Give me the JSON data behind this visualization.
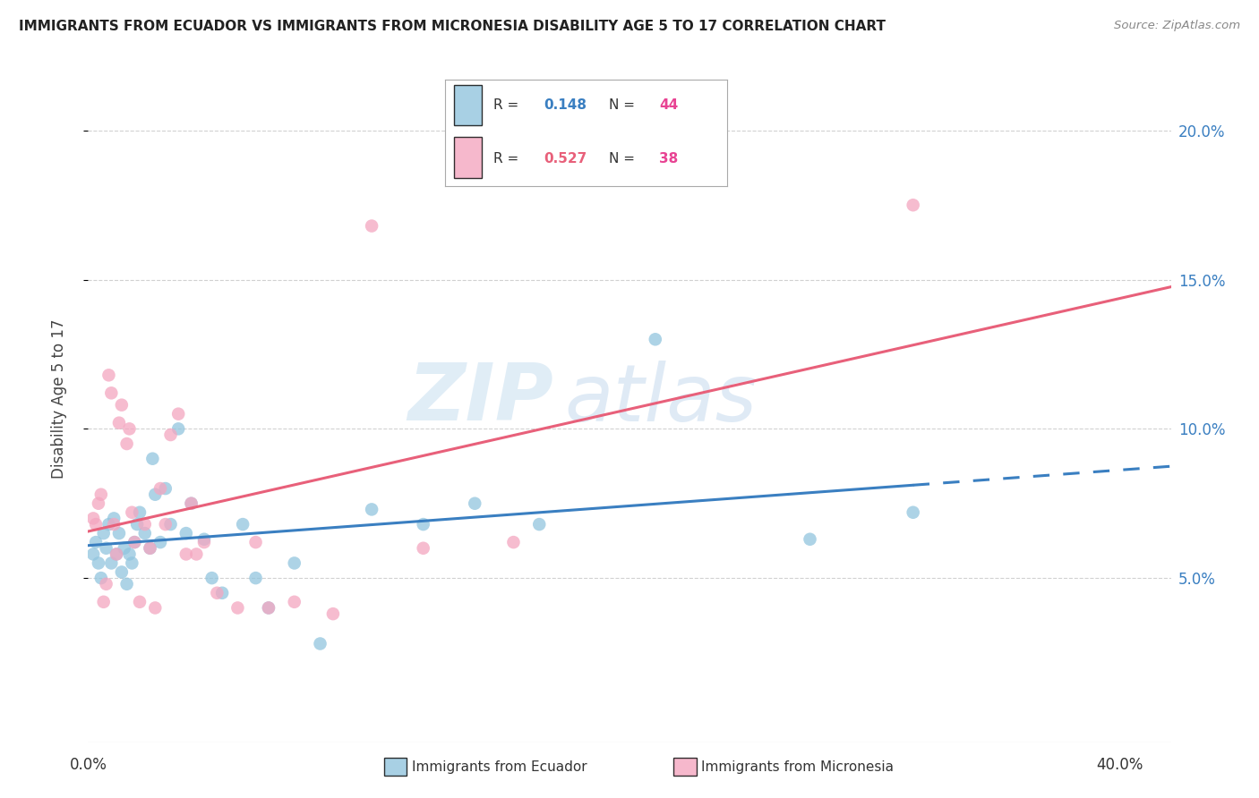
{
  "title": "IMMIGRANTS FROM ECUADOR VS IMMIGRANTS FROM MICRONESIA DISABILITY AGE 5 TO 17 CORRELATION CHART",
  "source": "Source: ZipAtlas.com",
  "ylabel": "Disability Age 5 to 17",
  "xlim": [
    0.0,
    0.42
  ],
  "ylim": [
    -0.005,
    0.225
  ],
  "yticks": [
    0.05,
    0.1,
    0.15,
    0.2
  ],
  "ytick_labels": [
    "5.0%",
    "10.0%",
    "15.0%",
    "20.0%"
  ],
  "ecuador_color": "#92c5de",
  "micronesia_color": "#f4a6c0",
  "ecuador_line_color": "#3a7fc1",
  "micronesia_line_color": "#e8607a",
  "ecuador_R": "0.148",
  "ecuador_N": "44",
  "micronesia_R": "0.527",
  "micronesia_N": "38",
  "watermark_zip": "ZIP",
  "watermark_atlas": "atlas",
  "ecuador_points_x": [
    0.002,
    0.003,
    0.004,
    0.005,
    0.006,
    0.007,
    0.008,
    0.009,
    0.01,
    0.011,
    0.012,
    0.013,
    0.014,
    0.015,
    0.016,
    0.017,
    0.018,
    0.019,
    0.02,
    0.022,
    0.024,
    0.025,
    0.026,
    0.028,
    0.03,
    0.032,
    0.035,
    0.038,
    0.04,
    0.045,
    0.048,
    0.052,
    0.06,
    0.065,
    0.07,
    0.08,
    0.09,
    0.11,
    0.13,
    0.15,
    0.175,
    0.22,
    0.28,
    0.32
  ],
  "ecuador_points_y": [
    0.058,
    0.062,
    0.055,
    0.05,
    0.065,
    0.06,
    0.068,
    0.055,
    0.07,
    0.058,
    0.065,
    0.052,
    0.06,
    0.048,
    0.058,
    0.055,
    0.062,
    0.068,
    0.072,
    0.065,
    0.06,
    0.09,
    0.078,
    0.062,
    0.08,
    0.068,
    0.1,
    0.065,
    0.075,
    0.063,
    0.05,
    0.045,
    0.068,
    0.05,
    0.04,
    0.055,
    0.028,
    0.073,
    0.068,
    0.075,
    0.068,
    0.13,
    0.063,
    0.072
  ],
  "micronesia_points_x": [
    0.002,
    0.003,
    0.004,
    0.005,
    0.006,
    0.007,
    0.008,
    0.009,
    0.01,
    0.011,
    0.012,
    0.013,
    0.015,
    0.016,
    0.017,
    0.018,
    0.02,
    0.022,
    0.024,
    0.026,
    0.028,
    0.03,
    0.032,
    0.035,
    0.038,
    0.04,
    0.042,
    0.045,
    0.05,
    0.058,
    0.065,
    0.07,
    0.08,
    0.095,
    0.11,
    0.13,
    0.165,
    0.32
  ],
  "micronesia_points_y": [
    0.07,
    0.068,
    0.075,
    0.078,
    0.042,
    0.048,
    0.118,
    0.112,
    0.068,
    0.058,
    0.102,
    0.108,
    0.095,
    0.1,
    0.072,
    0.062,
    0.042,
    0.068,
    0.06,
    0.04,
    0.08,
    0.068,
    0.098,
    0.105,
    0.058,
    0.075,
    0.058,
    0.062,
    0.045,
    0.04,
    0.062,
    0.04,
    0.042,
    0.038,
    0.168,
    0.06,
    0.062,
    0.175
  ]
}
